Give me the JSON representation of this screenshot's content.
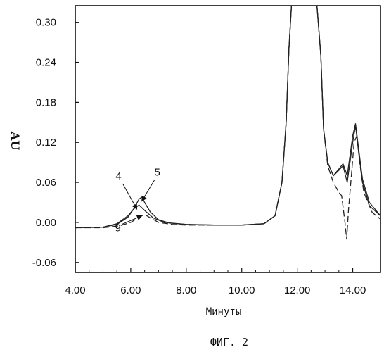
{
  "chart_data": {
    "type": "line",
    "title": "",
    "xlabel": "Минуты",
    "ylabel": "AU",
    "caption": "ФИГ. 2",
    "xlim": [
      4.0,
      15.0
    ],
    "ylim": [
      -0.075,
      0.325
    ],
    "x_ticks": [
      4.0,
      6.0,
      8.0,
      10.0,
      12.0,
      14.0
    ],
    "x_tick_labels": [
      "4.00",
      "6.00",
      "8.00",
      "10.00",
      "12.00",
      "14.00"
    ],
    "y_ticks": [
      -0.06,
      0.0,
      0.06,
      0.12,
      0.18,
      0.24,
      0.3
    ],
    "y_tick_labels": [
      "-0.06",
      "0.00",
      "0.06",
      "0.12",
      "0.18",
      "0.24",
      "0.30"
    ],
    "grid": false,
    "legend": "none",
    "series": [
      {
        "label": "4",
        "style": "solid",
        "x": [
          4.0,
          5.0,
          5.5,
          5.9,
          6.1,
          6.3,
          6.5,
          6.8,
          7.2,
          8.0,
          9.0,
          10.0,
          10.8,
          11.2,
          11.45,
          11.6,
          11.7,
          11.8,
          12.0,
          12.7,
          12.85,
          12.95,
          13.1,
          13.3,
          13.5,
          13.65,
          13.8,
          13.9,
          14.0,
          14.1,
          14.2,
          14.35,
          14.6,
          15.0
        ],
        "y": [
          -0.008,
          -0.007,
          -0.002,
          0.01,
          0.02,
          0.026,
          0.018,
          0.007,
          0.0,
          -0.003,
          -0.004,
          -0.004,
          -0.002,
          0.01,
          0.06,
          0.15,
          0.26,
          0.33,
          0.33,
          0.33,
          0.25,
          0.14,
          0.09,
          0.07,
          0.078,
          0.085,
          0.06,
          0.09,
          0.12,
          0.145,
          0.11,
          0.06,
          0.025,
          0.01
        ]
      },
      {
        "label": "5",
        "style": "solid",
        "x": [
          4.0,
          5.0,
          5.5,
          5.9,
          6.1,
          6.3,
          6.4,
          6.5,
          6.7,
          7.0,
          7.4,
          8.0,
          9.0,
          10.0,
          10.8,
          11.2,
          11.45,
          11.6,
          11.7,
          11.8,
          12.0,
          12.7,
          12.85,
          12.95,
          13.1,
          13.3,
          13.5,
          13.65,
          13.8,
          13.9,
          14.0,
          14.1,
          14.2,
          14.35,
          14.6,
          15.0
        ],
        "y": [
          -0.008,
          -0.007,
          -0.003,
          0.008,
          0.02,
          0.035,
          0.038,
          0.03,
          0.016,
          0.004,
          -0.001,
          -0.003,
          -0.004,
          -0.004,
          -0.002,
          0.01,
          0.06,
          0.15,
          0.26,
          0.33,
          0.33,
          0.33,
          0.25,
          0.14,
          0.09,
          0.07,
          0.08,
          0.088,
          0.07,
          0.1,
          0.13,
          0.148,
          0.115,
          0.065,
          0.03,
          0.01
        ]
      },
      {
        "label": "9",
        "style": "dashed",
        "x": [
          4.0,
          5.0,
          5.6,
          6.0,
          6.3,
          6.5,
          6.7,
          7.0,
          7.5,
          8.0,
          9.0,
          10.0,
          10.8,
          11.2,
          11.45,
          11.6,
          11.7,
          11.8,
          12.0,
          12.7,
          12.85,
          12.95,
          13.1,
          13.3,
          13.5,
          13.6,
          13.72,
          13.78,
          13.85,
          13.95,
          14.05,
          14.15,
          14.25,
          14.4,
          14.7,
          15.0
        ],
        "y": [
          -0.008,
          -0.008,
          -0.005,
          0.0,
          0.008,
          0.012,
          0.007,
          0.0,
          -0.003,
          -0.004,
          -0.004,
          -0.004,
          -0.002,
          0.01,
          0.06,
          0.15,
          0.26,
          0.33,
          0.33,
          0.33,
          0.25,
          0.14,
          0.085,
          0.06,
          0.045,
          0.04,
          0.0,
          -0.025,
          0.02,
          0.07,
          0.12,
          0.13,
          0.09,
          0.045,
          0.015,
          0.005
        ]
      }
    ],
    "annotations": [
      {
        "text": "4",
        "points_to": [
          6.22,
          0.02
        ]
      },
      {
        "text": "5",
        "points_to": [
          6.4,
          0.032
        ]
      },
      {
        "text": "9",
        "points_to": [
          6.4,
          0.01
        ]
      }
    ]
  }
}
